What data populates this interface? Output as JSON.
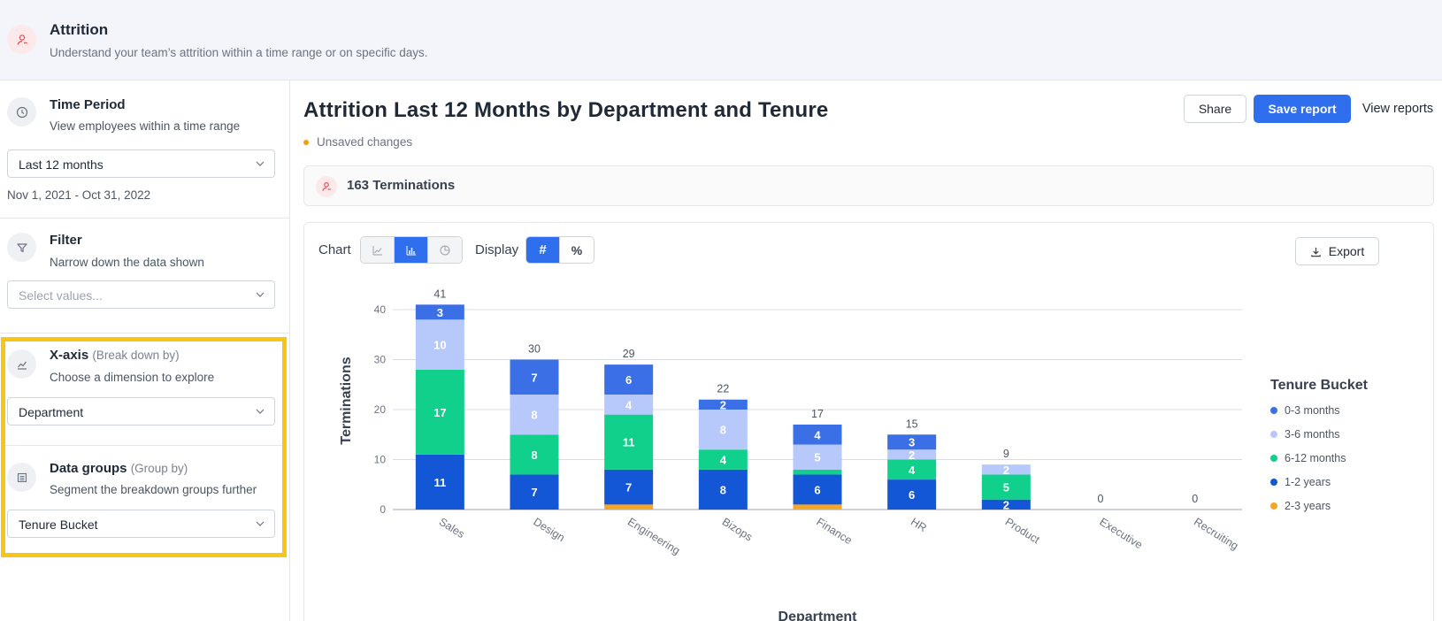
{
  "header": {
    "title": "Attrition",
    "subtitle": "Understand your team’s attrition within a time range or on specific days."
  },
  "sidebar": {
    "time_period": {
      "title": "Time Period",
      "description": "View employees within a time range",
      "selected": "Last 12 months",
      "date_range": "Nov 1, 2021 - Oct 31, 2022"
    },
    "filter": {
      "title": "Filter",
      "description": "Narrow down the data shown",
      "placeholder": "Select values..."
    },
    "x_axis": {
      "title": "X-axis",
      "qualifier": "(Break down by)",
      "description": "Choose a dimension to explore",
      "selected": "Department"
    },
    "data_groups": {
      "title": "Data groups",
      "qualifier": "(Group by)",
      "description": "Segment the breakdown groups further",
      "selected": "Tenure Bucket"
    }
  },
  "main": {
    "report_title": "Attrition Last 12 Months by Department and Tenure",
    "status": "Unsaved changes",
    "buttons": {
      "share": "Share",
      "save": "Save report",
      "view": "View reports",
      "export": "Export"
    },
    "summary": "163 Terminations",
    "controls": {
      "chart_label": "Chart",
      "display_label": "Display",
      "chart_types": [
        "line-icon",
        "bar-chart-icon",
        "pie-chart-icon"
      ],
      "active_chart_type": "bar",
      "display_modes": [
        "#",
        "%"
      ],
      "active_display": "#"
    }
  },
  "colors": {
    "accent": "#2f6fed",
    "0-3 months": "#3b6fe6",
    "3-6 months": "#b7c8fb",
    "6-12 months": "#10d08b",
    "1-2 years": "#1356d6",
    "2-3 years": "#f5a623"
  },
  "chart_data": {
    "type": "bar",
    "stacked": true,
    "title": "",
    "xlabel": "Department",
    "ylabel": "Terminations",
    "ylim": [
      0,
      40
    ],
    "yticks": [
      0,
      10,
      20,
      30,
      40
    ],
    "grid": true,
    "legend_title": "Tenure Bucket",
    "legend_position": "right",
    "categories": [
      "Sales",
      "Design",
      "Engineering",
      "Bizops",
      "Finance",
      "HR",
      "Product",
      "Executive",
      "Recruiting"
    ],
    "totals": [
      41,
      30,
      29,
      22,
      17,
      15,
      9,
      0,
      0
    ],
    "series": [
      {
        "name": "2-3 years",
        "values": [
          0,
          0,
          1,
          0,
          1,
          0,
          0,
          0,
          0
        ]
      },
      {
        "name": "1-2 years",
        "values": [
          11,
          7,
          7,
          8,
          6,
          6,
          2,
          0,
          0
        ]
      },
      {
        "name": "6-12 months",
        "values": [
          17,
          8,
          11,
          4,
          1,
          4,
          5,
          0,
          0
        ]
      },
      {
        "name": "3-6 months",
        "values": [
          10,
          8,
          4,
          8,
          5,
          2,
          2,
          0,
          0
        ]
      },
      {
        "name": "0-3 months",
        "values": [
          3,
          7,
          6,
          2,
          4,
          3,
          0,
          0,
          0
        ]
      }
    ],
    "legend_order": [
      "0-3 months",
      "3-6 months",
      "6-12 months",
      "1-2 years",
      "2-3 years"
    ]
  }
}
